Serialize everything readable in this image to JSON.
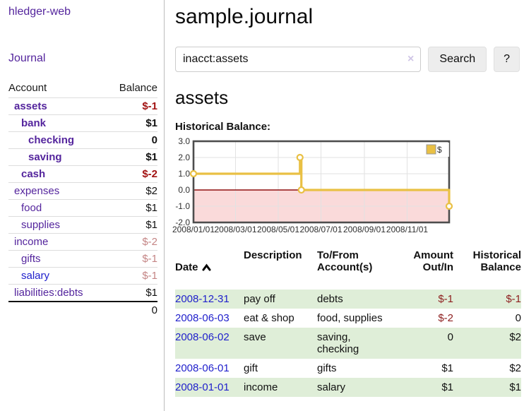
{
  "sidebar": {
    "brand": "hledger-web",
    "nav_journal": "Journal",
    "accounts": {
      "headers": {
        "account": "Account",
        "balance": "Balance"
      },
      "rows": [
        {
          "name": "assets",
          "balance": "$-1",
          "indent": 0,
          "bold": true,
          "balance_class": "neg-strong",
          "link": "visited"
        },
        {
          "name": "bank",
          "balance": "$1",
          "indent": 1,
          "bold": true,
          "balance_class": "plain-strong",
          "link": "visited"
        },
        {
          "name": "checking",
          "balance": "0",
          "indent": 2,
          "bold": true,
          "balance_class": "plain-strong",
          "link": "visited"
        },
        {
          "name": "saving",
          "balance": "$1",
          "indent": 2,
          "bold": true,
          "balance_class": "plain-strong",
          "link": "visited"
        },
        {
          "name": "cash",
          "balance": "$-2",
          "indent": 1,
          "bold": true,
          "balance_class": "neg-strong",
          "link": "visited"
        },
        {
          "name": "expenses",
          "balance": "$2",
          "indent": 0,
          "bold": false,
          "balance_class": "plain",
          "link": "visited"
        },
        {
          "name": "food",
          "balance": "$1",
          "indent": 1,
          "bold": false,
          "balance_class": "plain",
          "link": "visited"
        },
        {
          "name": "supplies",
          "balance": "$1",
          "indent": 1,
          "bold": false,
          "balance_class": "plain",
          "link": "visited"
        },
        {
          "name": "income",
          "balance": "$-2",
          "indent": 0,
          "bold": false,
          "balance_class": "neg-soft",
          "link": "visited"
        },
        {
          "name": "gifts",
          "balance": "$-1",
          "indent": 1,
          "bold": false,
          "balance_class": "neg-soft",
          "link": "visited"
        },
        {
          "name": "salary",
          "balance": "$-1",
          "indent": 1,
          "bold": false,
          "balance_class": "neg-soft",
          "link": "unvisited"
        },
        {
          "name": "liabilities:debts",
          "balance": "$1",
          "indent": 0,
          "bold": false,
          "balance_class": "plain",
          "link": "visited"
        }
      ],
      "total": "0"
    }
  },
  "main": {
    "title": "sample.journal",
    "search": {
      "value": "inacct:assets",
      "clear_icon": "×",
      "button": "Search",
      "help_button": "?"
    },
    "account_heading": "assets",
    "chart_label": "Historical Balance:"
  },
  "chart_data": {
    "type": "line",
    "title": "Historical Balance:",
    "step": true,
    "series": [
      {
        "name": "$",
        "color": "#e9c044",
        "points": [
          [
            "2008-01-01",
            1
          ],
          [
            "2008-06-01",
            2
          ],
          [
            "2008-06-03",
            0
          ],
          [
            "2008-12-31",
            -1
          ]
        ]
      }
    ],
    "xrange": [
      "2008-01-01",
      "2008-12-31"
    ],
    "xticks": [
      "2008/01/01",
      "2008/03/01",
      "2008/05/01",
      "2008/07/01",
      "2008/09/01",
      "2008/11/01"
    ],
    "yticks": [
      "3.0",
      "2.0",
      "1.0",
      "0.0",
      "-1.0",
      "-2.0"
    ],
    "ylim": [
      -2,
      3
    ],
    "grid": true,
    "legend_position": "top-right",
    "negative_region_color": "#fadada",
    "zero_line_color": "#8f1010"
  },
  "register": {
    "headers": {
      "date": "Date",
      "description": "Description",
      "accounts": "To/From\nAccount(s)",
      "amount": "Amount\nOut/In",
      "balance": "Historical\nBalance"
    },
    "rows": [
      {
        "date": "2008-12-31",
        "description": "pay off",
        "accounts": "debts",
        "amount": "$-1",
        "balance": "$-1"
      },
      {
        "date": "2008-06-03",
        "description": "eat & shop",
        "accounts": "food, supplies",
        "amount": "$-2",
        "balance": "0"
      },
      {
        "date": "2008-06-02",
        "description": "save",
        "accounts": "saving,\nchecking",
        "amount": "0",
        "balance": "$2"
      },
      {
        "date": "2008-06-01",
        "description": "gift",
        "accounts": "gifts",
        "amount": "$1",
        "balance": "$2"
      },
      {
        "date": "2008-01-01",
        "description": "income",
        "accounts": "salary",
        "amount": "$1",
        "balance": "$1"
      }
    ]
  }
}
